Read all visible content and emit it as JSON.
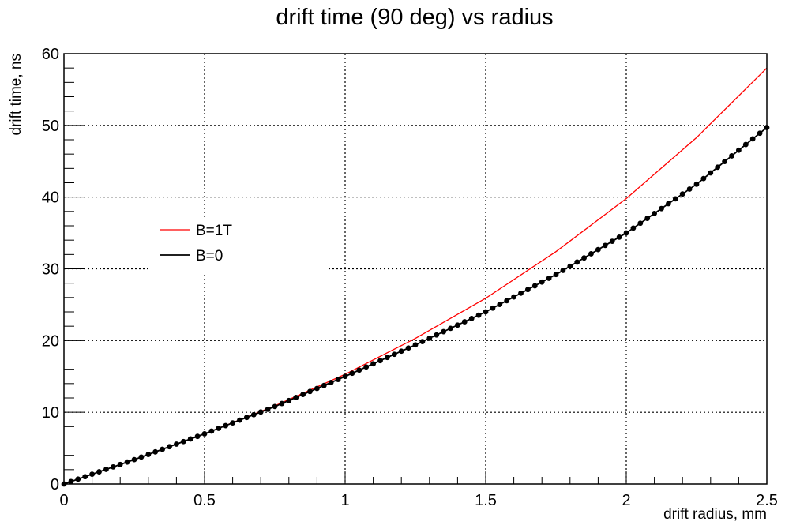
{
  "chart_data": {
    "type": "line",
    "title": "drift time (90 deg) vs radius",
    "xlabel": "drift radius, mm",
    "ylabel": "drift time, ns",
    "xlim": [
      0,
      2.5
    ],
    "ylim": [
      0,
      60
    ],
    "x_ticks": [
      "0",
      "0.5",
      "1",
      "1.5",
      "2",
      "2.5"
    ],
    "y_ticks": [
      "0",
      "10",
      "20",
      "30",
      "40",
      "50",
      "60"
    ],
    "grid": true,
    "legend_position": "left-middle",
    "series": [
      {
        "name": "B=1T",
        "color": "#ff0000",
        "style": "line",
        "x": [
          0,
          0.25,
          0.5,
          0.75,
          1.0,
          1.25,
          1.5,
          1.75,
          2.0,
          2.25,
          2.5
        ],
        "y": [
          0,
          3.4,
          7.0,
          10.9,
          15.3,
          20.3,
          25.9,
          32.4,
          39.8,
          48.3,
          58.0
        ]
      },
      {
        "name": "B=0",
        "color": "#000000",
        "style": "line+markers",
        "x": [
          0,
          0.25,
          0.5,
          0.75,
          1.0,
          1.25,
          1.5,
          1.75,
          2.0,
          2.25,
          2.5
        ],
        "y": [
          0,
          3.4,
          7.0,
          10.8,
          15.0,
          19.4,
          24.0,
          29.2,
          35.0,
          41.8,
          49.7
        ]
      }
    ]
  }
}
